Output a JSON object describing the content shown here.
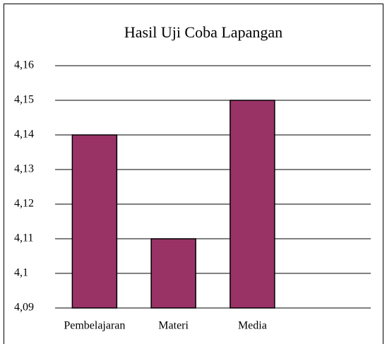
{
  "chart_data": {
    "type": "bar",
    "title": "Hasil Uji Coba Lapangan",
    "categories": [
      "Pembelajaran",
      "Materi",
      "Media"
    ],
    "values": [
      4.14,
      4.11,
      4.15
    ],
    "color": "#993366",
    "ylim": [
      4.09,
      4.16
    ],
    "yticks": [
      {
        "value": 4.09,
        "label": "4,09"
      },
      {
        "value": 4.1,
        "label": "4,1"
      },
      {
        "value": 4.11,
        "label": "4,11"
      },
      {
        "value": 4.12,
        "label": "4,12"
      },
      {
        "value": 4.13,
        "label": "4,13"
      },
      {
        "value": 4.14,
        "label": "4,14"
      },
      {
        "value": 4.15,
        "label": "4,15"
      },
      {
        "value": 4.16,
        "label": "4,16"
      }
    ],
    "grid": true
  }
}
